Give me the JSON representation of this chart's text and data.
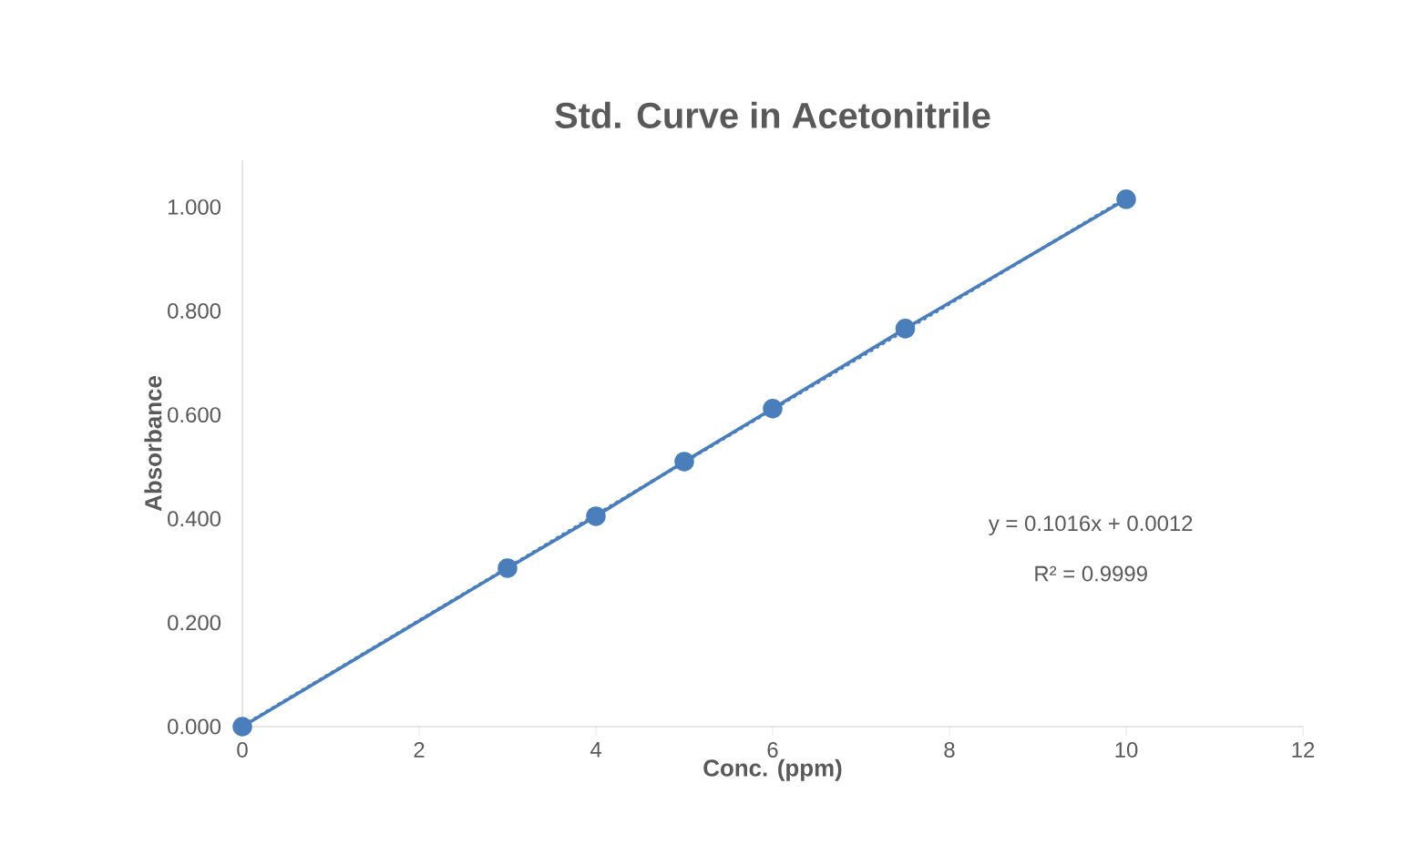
{
  "chart_data": {
    "type": "line",
    "title": "Std. Curve in Acetonitrile",
    "xlabel": "Conc. (ppm)",
    "ylabel": "Absorbance",
    "series": [
      {
        "color": "#4a7ebb",
        "x": [
          0,
          3,
          4,
          5,
          6,
          7.5,
          10
        ],
        "values": [
          0,
          0.305,
          0.405,
          0.51,
          0.612,
          0.766,
          1.015
        ],
        "marker": "circle",
        "line_style": "solid"
      },
      {
        "color": "#4a7ebb",
        "x": [
          0,
          10
        ],
        "values": [
          0.001,
          1.017
        ],
        "marker": "none",
        "line_style": "dotted"
      }
    ],
    "xlim": [
      0,
      12
    ],
    "xticks": [
      0,
      2,
      4,
      6,
      8,
      10,
      12
    ],
    "ylim": [
      0,
      1.09
    ],
    "yticks": [
      {
        "value": 0,
        "label": "0.000"
      },
      {
        "value": 0.2,
        "label": "0.200"
      },
      {
        "value": 0.4,
        "label": "0.400"
      },
      {
        "value": 0.6,
        "label": "0.600"
      },
      {
        "value": 0.8,
        "label": "0.800"
      },
      {
        "value": 1.0,
        "label": "1.000"
      }
    ],
    "annotations": [
      "y = 0.1016x + 0.0012",
      "R² = 0.9999"
    ]
  }
}
